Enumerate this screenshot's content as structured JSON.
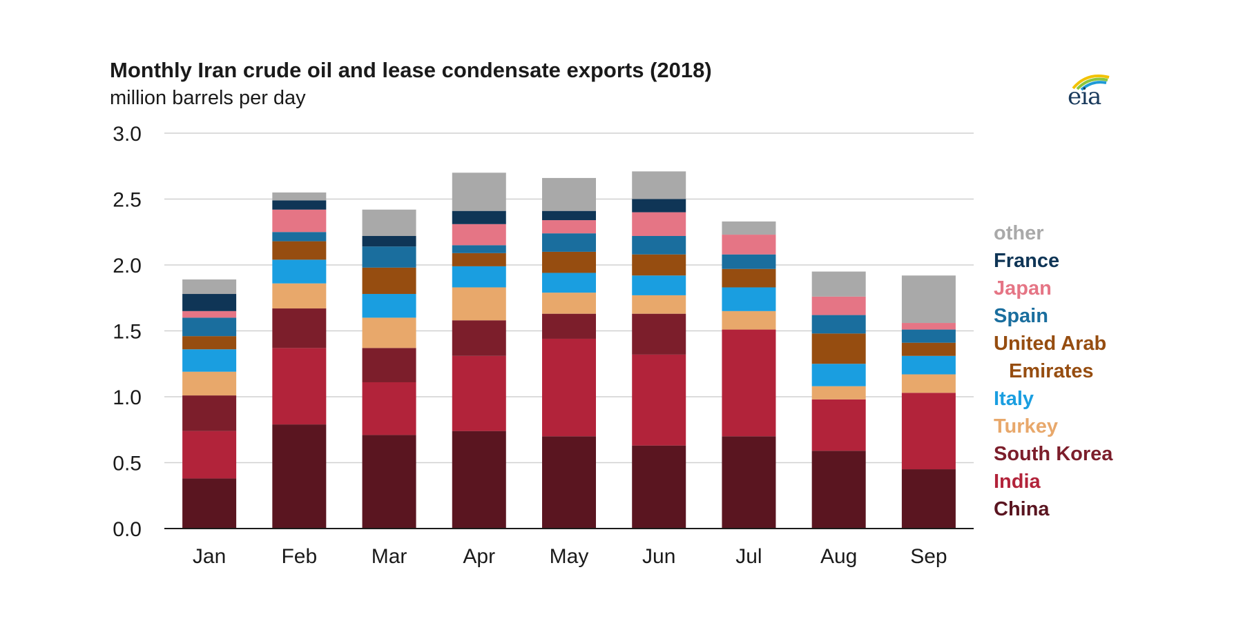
{
  "header": {
    "title": "Monthly Iran crude oil and lease condensate exports (2018)",
    "subtitle": "million barrels per day"
  },
  "logo": {
    "text": "eia",
    "icon": "eia-logo-icon"
  },
  "chart_data": {
    "type": "bar",
    "stacked": true,
    "title": "Monthly Iran crude oil and lease condensate exports (2018)",
    "subtitle": "million barrels per day",
    "xlabel": "",
    "ylabel": "",
    "ylim": [
      0,
      3.0
    ],
    "yticks": [
      "0.0",
      "0.5",
      "1.0",
      "1.5",
      "2.0",
      "2.5",
      "3.0"
    ],
    "grid": true,
    "legend_position": "right",
    "categories": [
      "Jan",
      "Feb",
      "Mar",
      "Apr",
      "May",
      "Jun",
      "Jul",
      "Aug",
      "Sep"
    ],
    "series": [
      {
        "name": "China",
        "color": "#5a1520",
        "values": [
          0.38,
          0.79,
          0.71,
          0.74,
          0.7,
          0.63,
          0.7,
          0.59,
          0.45
        ]
      },
      {
        "name": "India",
        "color": "#b2233a",
        "values": [
          0.36,
          0.58,
          0.4,
          0.57,
          0.74,
          0.69,
          0.81,
          0.39,
          0.58
        ]
      },
      {
        "name": "South Korea",
        "color": "#7c1e2b",
        "values": [
          0.27,
          0.3,
          0.26,
          0.27,
          0.19,
          0.31,
          0.0,
          0.0,
          0.0
        ]
      },
      {
        "name": "Turkey",
        "color": "#e8a86b",
        "values": [
          0.18,
          0.19,
          0.23,
          0.25,
          0.16,
          0.14,
          0.14,
          0.1,
          0.14
        ]
      },
      {
        "name": "Italy",
        "color": "#1a9ee0",
        "values": [
          0.17,
          0.18,
          0.18,
          0.16,
          0.15,
          0.15,
          0.18,
          0.17,
          0.14
        ]
      },
      {
        "name": "United Arab\nEmirates",
        "color": "#964d10",
        "values": [
          0.1,
          0.14,
          0.2,
          0.1,
          0.16,
          0.16,
          0.14,
          0.23,
          0.1
        ]
      },
      {
        "name": "Spain",
        "color": "#1a6e9e",
        "values": [
          0.14,
          0.07,
          0.16,
          0.06,
          0.14,
          0.14,
          0.11,
          0.14,
          0.1
        ]
      },
      {
        "name": "Japan",
        "color": "#e57585",
        "values": [
          0.05,
          0.17,
          0.0,
          0.16,
          0.1,
          0.18,
          0.15,
          0.14,
          0.05
        ]
      },
      {
        "name": "France",
        "color": "#0f3556",
        "values": [
          0.13,
          0.07,
          0.08,
          0.1,
          0.07,
          0.1,
          0.0,
          0.0,
          0.0
        ]
      },
      {
        "name": "other",
        "color": "#a9a9a9",
        "values": [
          0.11,
          0.06,
          0.2,
          0.29,
          0.25,
          0.21,
          0.1,
          0.19,
          0.36
        ]
      }
    ]
  }
}
